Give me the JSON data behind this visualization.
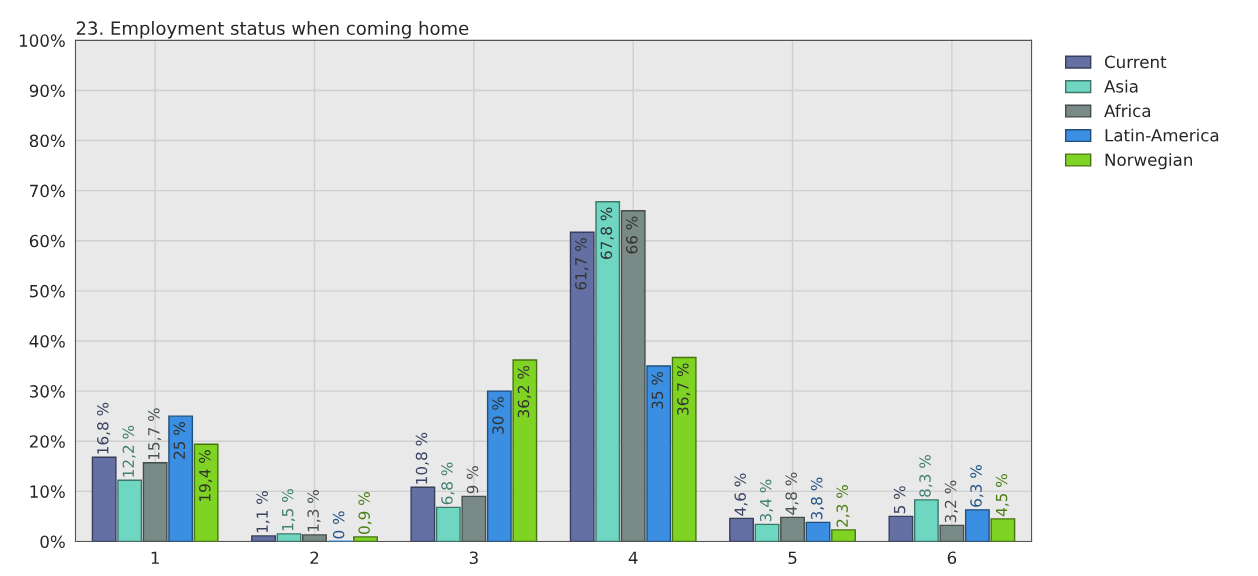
{
  "chart_data": {
    "type": "bar",
    "title": "23. Employment status when coming home",
    "categories": [
      "1",
      "2",
      "3",
      "4",
      "5",
      "6"
    ],
    "series": [
      {
        "name": "Current",
        "color": "#6470a4",
        "values": [
          16.8,
          1.1,
          10.8,
          61.7,
          4.6,
          5
        ],
        "value_labels": [
          "16,8 %",
          "1,1 %",
          "10,8 %",
          "61,7 %",
          "4,6 %",
          "5 %"
        ]
      },
      {
        "name": "Asia",
        "color": "#6fd6c2",
        "values": [
          12.2,
          1.5,
          6.8,
          67.8,
          3.4,
          8.3
        ],
        "value_labels": [
          "12,2 %",
          "1,5 %",
          "6,8 %",
          "67,8 %",
          "3,4 %",
          "8,3 %"
        ]
      },
      {
        "name": "Africa",
        "color": "#7a8a86",
        "values": [
          15.7,
          1.3,
          9,
          66,
          4.8,
          3.2
        ],
        "value_labels": [
          "15,7 %",
          "1,3 %",
          "9 %",
          "66 %",
          "4,8 %",
          "3,2 %"
        ]
      },
      {
        "name": "Latin-America",
        "color": "#3a8fe2",
        "values": [
          25,
          0,
          30,
          35,
          3.8,
          6.3
        ],
        "value_labels": [
          "25 %",
          "0 %",
          "30 %",
          "35 %",
          "3,8 %",
          "6,3 %"
        ]
      },
      {
        "name": "Norwegian",
        "color": "#7fd323",
        "values": [
          19.4,
          0.9,
          36.2,
          36.7,
          2.3,
          4.5
        ],
        "value_labels": [
          "19,4 %",
          "0,9 %",
          "36,2 %",
          "36,7 %",
          "2,3 %",
          "4,5 %"
        ]
      }
    ],
    "ylim": [
      0,
      100
    ],
    "yticks": [
      {
        "value": 0,
        "label": "0%"
      },
      {
        "value": 10,
        "label": "10%"
      },
      {
        "value": 20,
        "label": "20%"
      },
      {
        "value": 30,
        "label": "30%"
      },
      {
        "value": 40,
        "label": "40%"
      },
      {
        "value": 50,
        "label": "50%"
      },
      {
        "value": 60,
        "label": "60%"
      },
      {
        "value": 70,
        "label": "70%"
      },
      {
        "value": 80,
        "label": "80%"
      },
      {
        "value": 90,
        "label": "90%"
      },
      {
        "value": 100,
        "label": "100%"
      }
    ],
    "grid": true,
    "legend": "top right"
  }
}
